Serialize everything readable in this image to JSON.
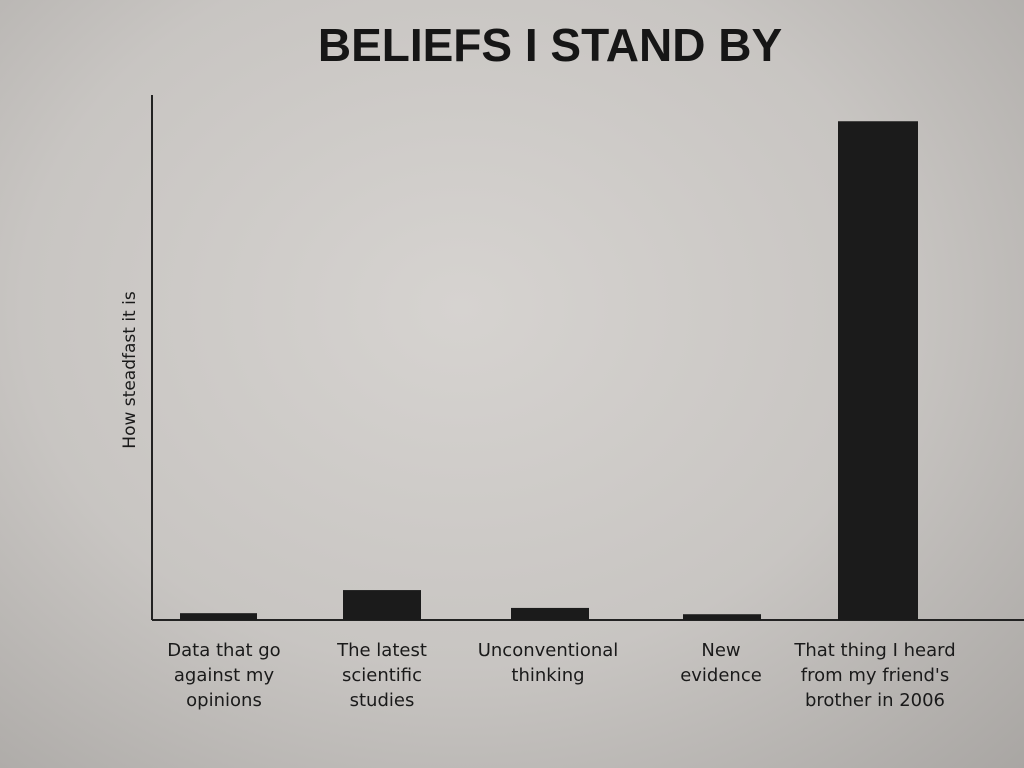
{
  "chart_data": {
    "type": "bar",
    "title": "BELIEFS I STAND BY",
    "xlabel": "",
    "ylabel": "How steadfast it is",
    "ylim": [
      0,
      100
    ],
    "grid": false,
    "categories": [
      "Data that go against my opinions",
      "The latest scientific studies",
      "Unconventional thinking",
      "New evidence",
      "That thing I heard from my friend's brother in 2006"
    ],
    "category_lines": [
      [
        "Data that go",
        "against my",
        "opinions"
      ],
      [
        "The latest",
        "scientific",
        "studies"
      ],
      [
        "Unconventional",
        "thinking"
      ],
      [
        "New",
        "evidence"
      ],
      [
        "That thing I heard",
        "from my friend's",
        "brother in 2006"
      ]
    ],
    "values": [
      1.3,
      5.7,
      2.3,
      1.1,
      95
    ],
    "bar_color": "#1b1b1b"
  }
}
